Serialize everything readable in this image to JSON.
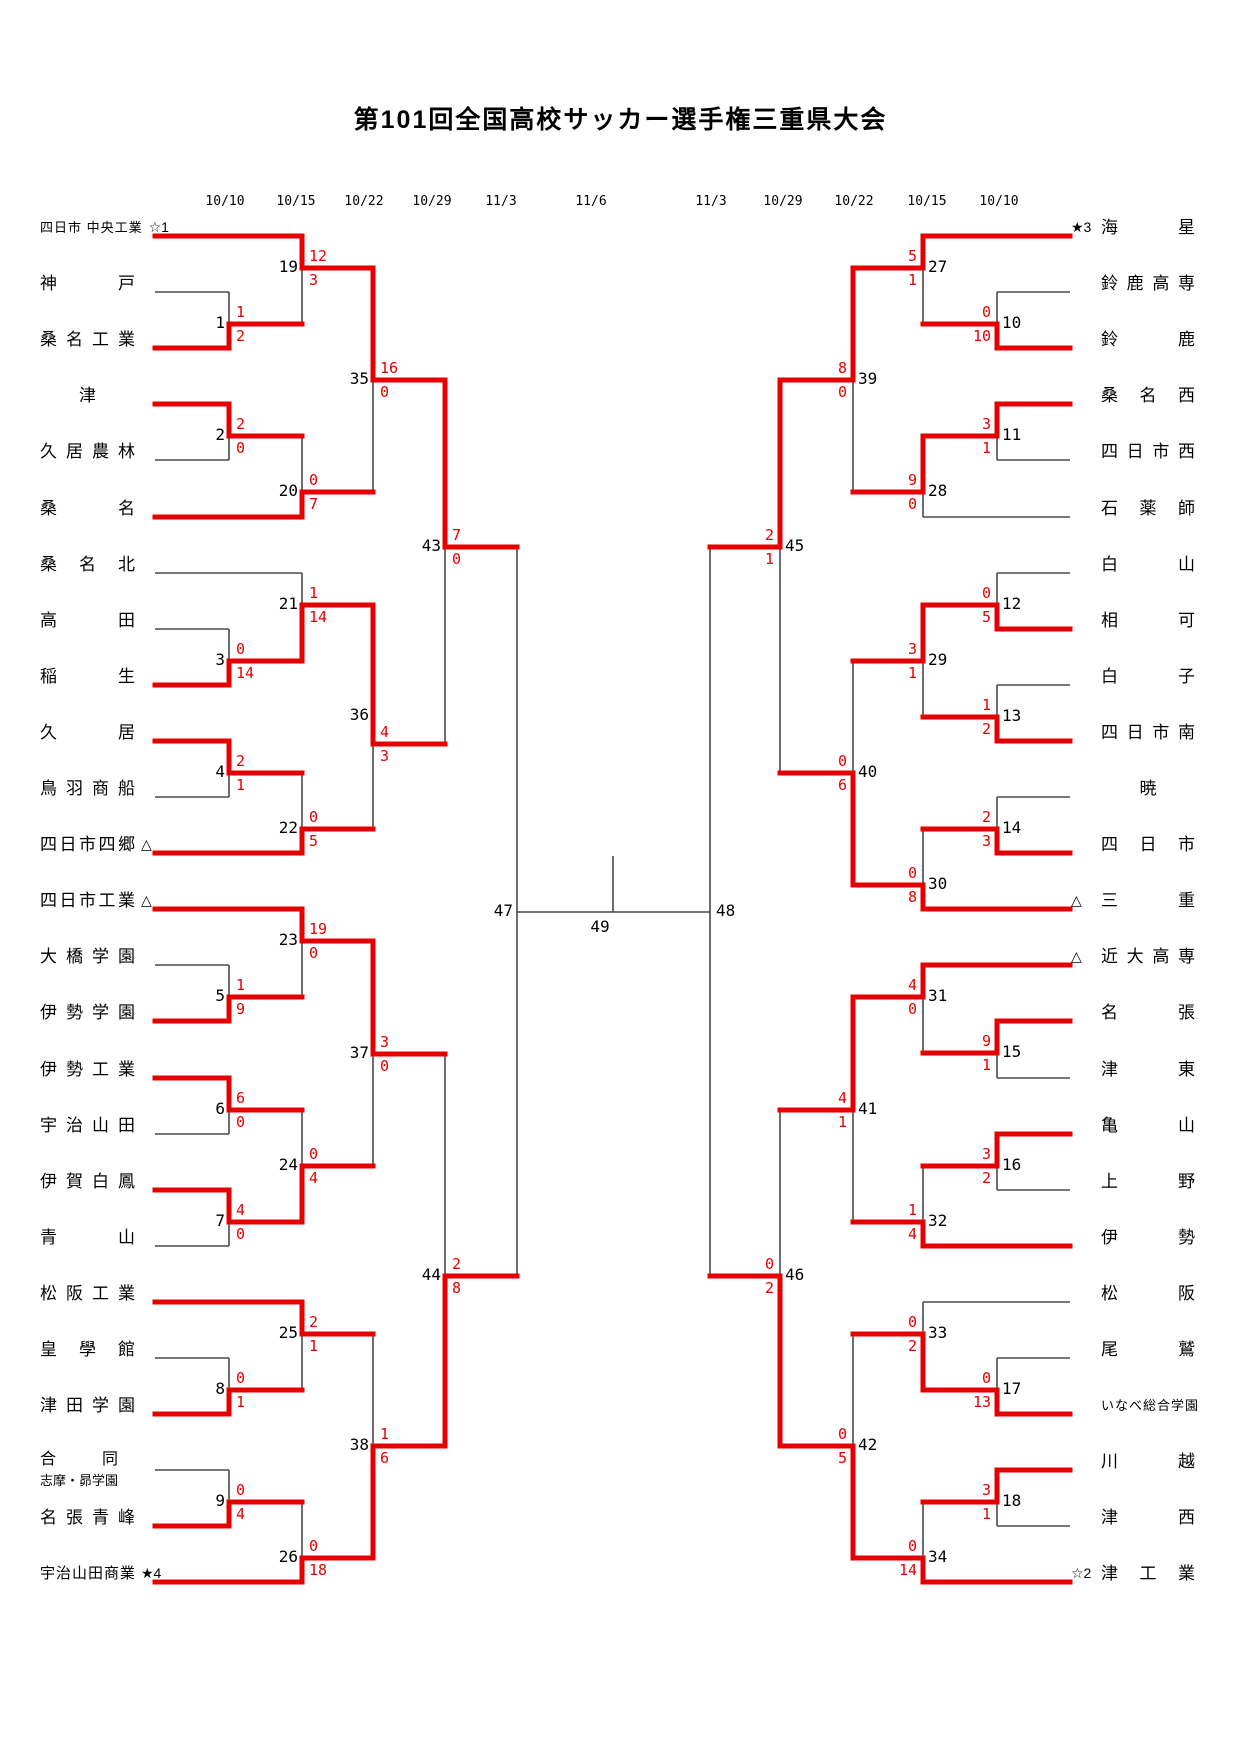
{
  "title": "第101回全国高校サッカー選手権三重県大会",
  "colors": {
    "winner_line": "#e60000",
    "line": "#4a4a4a",
    "score": "#e60000",
    "text": "#000000"
  },
  "dates": {
    "left": [
      "10/10",
      "10/15",
      "10/22",
      "10/29",
      "11/3",
      "11/6"
    ],
    "right": [
      "11/3",
      "10/29",
      "10/22",
      "10/15",
      "10/10"
    ]
  },
  "halves": {
    "L": {
      "teams": [
        {
          "name": "四日市 中央工業",
          "mark": "☆1",
          "mark_pos": "after",
          "style": "natural"
        },
        {
          "name": "神戸"
        },
        {
          "name": "桑名工業"
        },
        {
          "name": "津"
        },
        {
          "name": "久居農林"
        },
        {
          "name": "桑名"
        },
        {
          "name": "桑名北"
        },
        {
          "name": "高田"
        },
        {
          "name": "稲生"
        },
        {
          "name": "久居"
        },
        {
          "name": "鳥羽商船"
        },
        {
          "name": "四日市四郷",
          "mark": "△",
          "mark_pos": "after"
        },
        {
          "name": "四日市工業",
          "mark": "△",
          "mark_pos": "after"
        },
        {
          "name": "大橋学園"
        },
        {
          "name": "伊勢学園"
        },
        {
          "name": "伊勢工業"
        },
        {
          "name": "宇治山田"
        },
        {
          "name": "伊賀白鳳"
        },
        {
          "name": "青山"
        },
        {
          "name": "松阪工業"
        },
        {
          "name": "皇學館"
        },
        {
          "name": "津田学園"
        },
        {
          "name": "合同",
          "name2": "志摩・昴学園"
        },
        {
          "name": "名張青峰"
        },
        {
          "name": "宇治山田商業",
          "mark": "★4",
          "mark_pos": "after"
        }
      ]
    },
    "R": {
      "teams": [
        {
          "name": "海星",
          "mark": "★3",
          "mark_pos": "before"
        },
        {
          "name": "鈴鹿高専"
        },
        {
          "name": "鈴鹿"
        },
        {
          "name": "桑名西"
        },
        {
          "name": "四日市西"
        },
        {
          "name": "石薬師"
        },
        {
          "name": "白山"
        },
        {
          "name": "相可"
        },
        {
          "name": "白子"
        },
        {
          "name": "四日市南"
        },
        {
          "name": "暁"
        },
        {
          "name": "四日市"
        },
        {
          "name": "三重",
          "mark": "△",
          "mark_pos": "before"
        },
        {
          "name": "近大高専",
          "mark": "△",
          "mark_pos": "before"
        },
        {
          "name": "名張"
        },
        {
          "name": "津東"
        },
        {
          "name": "亀山"
        },
        {
          "name": "上野"
        },
        {
          "name": "伊勢"
        },
        {
          "name": "松阪"
        },
        {
          "name": "尾鷲"
        },
        {
          "name": "いなべ総合学園",
          "style": "natural"
        },
        {
          "name": "川越"
        },
        {
          "name": "津西"
        },
        {
          "name": "津工業",
          "mark": "☆2",
          "mark_pos": "before"
        }
      ]
    }
  },
  "matches": [
    {
      "n": 1,
      "half": "L",
      "top": {
        "team": 1
      },
      "bot": {
        "team": 2
      },
      "score_top": "1",
      "score_bot": "2",
      "winner": "bot"
    },
    {
      "n": 2,
      "half": "L",
      "top": {
        "team": 3
      },
      "bot": {
        "team": 4
      },
      "score_top": "2",
      "score_bot": "0",
      "winner": "top"
    },
    {
      "n": 3,
      "half": "L",
      "top": {
        "team": 7
      },
      "bot": {
        "team": 8
      },
      "score_top": "0",
      "score_bot": "14",
      "winner": "bot"
    },
    {
      "n": 4,
      "half": "L",
      "top": {
        "team": 9
      },
      "bot": {
        "team": 10
      },
      "score_top": "2",
      "score_bot": "1",
      "winner": "top"
    },
    {
      "n": 5,
      "half": "L",
      "top": {
        "team": 13
      },
      "bot": {
        "team": 14
      },
      "score_top": "1",
      "score_bot": "9",
      "winner": "bot"
    },
    {
      "n": 6,
      "half": "L",
      "top": {
        "team": 15
      },
      "bot": {
        "team": 16
      },
      "score_top": "6",
      "score_bot": "0",
      "winner": "top"
    },
    {
      "n": 7,
      "half": "L",
      "top": {
        "team": 17
      },
      "bot": {
        "team": 18
      },
      "score_top": "4",
      "score_bot": "0",
      "winner": "top"
    },
    {
      "n": 8,
      "half": "L",
      "top": {
        "team": 20
      },
      "bot": {
        "team": 21
      },
      "score_top": "0",
      "score_bot": "1",
      "winner": "bot"
    },
    {
      "n": 9,
      "half": "L",
      "top": {
        "team": 22
      },
      "bot": {
        "team": 23
      },
      "score_top": "0",
      "score_bot": "4",
      "winner": "bot"
    },
    {
      "n": 10,
      "half": "R",
      "top": {
        "team": 1
      },
      "bot": {
        "team": 2
      },
      "score_top": "0",
      "score_bot": "10",
      "winner": "bot"
    },
    {
      "n": 11,
      "half": "R",
      "top": {
        "team": 3
      },
      "bot": {
        "team": 4
      },
      "score_top": "3",
      "score_bot": "1",
      "winner": "top"
    },
    {
      "n": 12,
      "half": "R",
      "top": {
        "team": 6
      },
      "bot": {
        "team": 7
      },
      "score_top": "0",
      "score_bot": "5",
      "winner": "bot"
    },
    {
      "n": 13,
      "half": "R",
      "top": {
        "team": 8
      },
      "bot": {
        "team": 9
      },
      "score_top": "1",
      "score_bot": "2",
      "winner": "bot"
    },
    {
      "n": 14,
      "half": "R",
      "top": {
        "team": 10
      },
      "bot": {
        "team": 11
      },
      "score_top": "2",
      "score_bot": "3",
      "winner": "bot"
    },
    {
      "n": 15,
      "half": "R",
      "top": {
        "team": 14
      },
      "bot": {
        "team": 15
      },
      "score_top": "9",
      "score_bot": "1",
      "winner": "top"
    },
    {
      "n": 16,
      "half": "R",
      "top": {
        "team": 16
      },
      "bot": {
        "team": 17
      },
      "score_top": "3",
      "score_bot": "2",
      "winner": "top"
    },
    {
      "n": 17,
      "half": "R",
      "top": {
        "team": 20
      },
      "bot": {
        "team": 21
      },
      "score_top": "0",
      "score_bot": "13",
      "winner": "bot"
    },
    {
      "n": 18,
      "half": "R",
      "top": {
        "team": 22
      },
      "bot": {
        "team": 23
      },
      "score_top": "3",
      "score_bot": "1",
      "winner": "top"
    },
    {
      "n": 19,
      "half": "L",
      "top": {
        "team": 0
      },
      "bot": {
        "match": 1
      },
      "score_top": "12",
      "score_bot": "3",
      "winner": "top"
    },
    {
      "n": 20,
      "half": "L",
      "top": {
        "match": 2
      },
      "bot": {
        "team": 5
      },
      "score_top": "0",
      "score_bot": "7",
      "winner": "bot"
    },
    {
      "n": 21,
      "half": "L",
      "top": {
        "team": 6
      },
      "bot": {
        "match": 3
      },
      "score_top": "1",
      "score_bot": "14",
      "winner": "bot"
    },
    {
      "n": 22,
      "half": "L",
      "top": {
        "match": 4
      },
      "bot": {
        "team": 11
      },
      "score_top": "0",
      "score_bot": "5",
      "winner": "bot"
    },
    {
      "n": 23,
      "half": "L",
      "top": {
        "team": 12
      },
      "bot": {
        "match": 5
      },
      "score_top": "19",
      "score_bot": "0",
      "winner": "top"
    },
    {
      "n": 24,
      "half": "L",
      "top": {
        "match": 6
      },
      "bot": {
        "match": 7
      },
      "score_top": "0",
      "score_bot": "4",
      "winner": "bot"
    },
    {
      "n": 25,
      "half": "L",
      "top": {
        "team": 19
      },
      "bot": {
        "match": 8
      },
      "score_top": "2",
      "score_bot": "1",
      "winner": "top"
    },
    {
      "n": 26,
      "half": "L",
      "top": {
        "match": 9
      },
      "bot": {
        "team": 24
      },
      "score_top": "0",
      "score_bot": "18",
      "winner": "bot"
    },
    {
      "n": 27,
      "half": "R",
      "top": {
        "team": 0
      },
      "bot": {
        "match": 10
      },
      "score_top": "5",
      "score_bot": "1",
      "winner": "top"
    },
    {
      "n": 28,
      "half": "R",
      "top": {
        "match": 11
      },
      "bot": {
        "team": 5
      },
      "score_top": "9",
      "score_bot": "0",
      "winner": "top"
    },
    {
      "n": 29,
      "half": "R",
      "top": {
        "match": 12
      },
      "bot": {
        "match": 13
      },
      "score_top": "3",
      "score_bot": "1",
      "winner": "top"
    },
    {
      "n": 30,
      "half": "R",
      "top": {
        "match": 14
      },
      "bot": {
        "team": 12
      },
      "score_top": "0",
      "score_bot": "8",
      "winner": "bot"
    },
    {
      "n": 31,
      "half": "R",
      "top": {
        "team": 13
      },
      "bot": {
        "match": 15
      },
      "score_top": "4",
      "score_bot": "0",
      "winner": "top"
    },
    {
      "n": 32,
      "half": "R",
      "top": {
        "match": 16
      },
      "bot": {
        "team": 18
      },
      "score_top": "1",
      "score_bot": "4",
      "winner": "bot"
    },
    {
      "n": 33,
      "half": "R",
      "top": {
        "team": 19
      },
      "bot": {
        "match": 17
      },
      "score_top": "0",
      "score_bot": "2",
      "winner": "bot"
    },
    {
      "n": 34,
      "half": "R",
      "top": {
        "match": 18
      },
      "bot": {
        "team": 24
      },
      "score_top": "0",
      "score_bot": "14",
      "winner": "bot"
    },
    {
      "n": 35,
      "half": "L",
      "top": {
        "match": 19
      },
      "bot": {
        "match": 20
      },
      "score_top": "16",
      "score_bot": "0",
      "winner": "top"
    },
    {
      "n": 36,
      "half": "L",
      "top": {
        "match": 21
      },
      "bot": {
        "match": 22
      },
      "score_top": "4",
      "score_bot": "3",
      "winner": "top"
    },
    {
      "n": 37,
      "half": "L",
      "top": {
        "match": 23
      },
      "bot": {
        "match": 24
      },
      "score_top": "3",
      "score_bot": "0",
      "winner": "top"
    },
    {
      "n": 38,
      "half": "L",
      "top": {
        "match": 25
      },
      "bot": {
        "match": 26
      },
      "score_top": "1",
      "score_bot": "6",
      "winner": "bot"
    },
    {
      "n": 39,
      "half": "R",
      "top": {
        "match": 27
      },
      "bot": {
        "match": 28
      },
      "score_top": "8",
      "score_bot": "0",
      "winner": "top"
    },
    {
      "n": 40,
      "half": "R",
      "top": {
        "match": 29
      },
      "bot": {
        "match": 30
      },
      "score_top": "0",
      "score_bot": "6",
      "winner": "bot"
    },
    {
      "n": 41,
      "half": "R",
      "top": {
        "match": 31
      },
      "bot": {
        "match": 32
      },
      "score_top": "4",
      "score_bot": "1",
      "winner": "top"
    },
    {
      "n": 42,
      "half": "R",
      "top": {
        "match": 33
      },
      "bot": {
        "match": 34
      },
      "score_top": "0",
      "score_bot": "5",
      "winner": "bot"
    },
    {
      "n": 43,
      "half": "L",
      "top": {
        "match": 35
      },
      "bot": {
        "match": 36
      },
      "score_top": "7",
      "score_bot": "0",
      "winner": "top"
    },
    {
      "n": 44,
      "half": "L",
      "top": {
        "match": 37
      },
      "bot": {
        "match": 38
      },
      "score_top": "2",
      "score_bot": "8",
      "winner": "bot"
    },
    {
      "n": 45,
      "half": "R",
      "top": {
        "match": 39
      },
      "bot": {
        "match": 40
      },
      "score_top": "2",
      "score_bot": "1",
      "winner": "top"
    },
    {
      "n": 46,
      "half": "R",
      "top": {
        "match": 41
      },
      "bot": {
        "match": 42
      },
      "score_top": "0",
      "score_bot": "2",
      "winner": "bot"
    }
  ],
  "finals": {
    "semi_left": "47",
    "semi_right": "48",
    "final": "49"
  }
}
